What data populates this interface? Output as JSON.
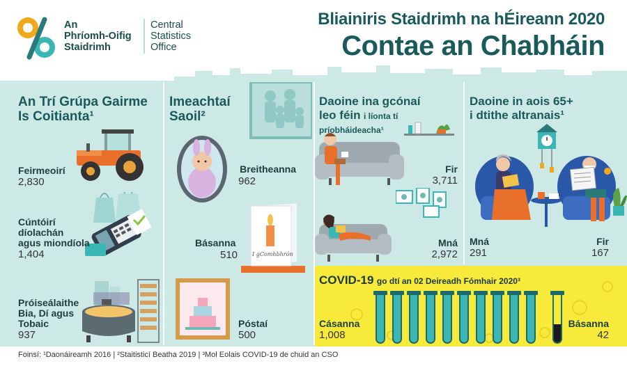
{
  "logo": {
    "irish_name_1": "An",
    "irish_name_2": "Phríomh-Oifig",
    "irish_name_3": "Staidrimh",
    "english_name_1": "Central",
    "english_name_2": "Statistics",
    "english_name_3": "Office"
  },
  "header": {
    "subtitle": "Bliainiris Staidrimh na hÉireann 2020",
    "title": "Contae an Chabháin"
  },
  "occupations": {
    "heading_1": "An Trí Grúpa Gairme",
    "heading_2": "Is Coitianta¹",
    "items": [
      {
        "label": "Feirmeoirí",
        "value": "2,830"
      },
      {
        "label_1": "Cúntóirí",
        "label_2": "díolachán",
        "label_3": "agus miondíola",
        "value": "1,404"
      },
      {
        "label_1": "Próiseálaithe",
        "label_2": "Bia, Dí agus",
        "label_3": "Tobaic",
        "value": "937"
      }
    ]
  },
  "life_events": {
    "heading_1": "Imeachtaí",
    "heading_2": "Saoil²",
    "births_label": "Breitheanna",
    "births_value": "962",
    "deaths_label": "Básanna",
    "deaths_value": "510",
    "marriages_label": "Póstaí",
    "marriages_value": "500",
    "card_text": "I gComhbhrón"
  },
  "living_alone": {
    "heading_1": "Daoine ina gcónaí",
    "heading_2": "leo féin",
    "heading_small_1": "i líonta tí",
    "heading_small_2": "príobháideacha¹",
    "men_label": "Fir",
    "men_value": "3,711",
    "women_label": "Mná",
    "women_value": "2,972"
  },
  "nursing_homes": {
    "heading_1": "Daoine in aois 65+",
    "heading_2": "i dtithe altranais¹",
    "women_label": "Mná",
    "women_value": "291",
    "men_label": "Fir",
    "men_value": "167"
  },
  "covid": {
    "heading_bold": "COVID-19",
    "heading_rest": "go dtí an 02 Deireadh Fómhair 2020³",
    "cases_label": "Cásanna",
    "cases_value": "1,008",
    "deaths_label": "Básanna",
    "deaths_value": "42"
  },
  "footer": {
    "sources": "Foinsí: ¹Daonáireamh 2016 | ²Staitisticí Beatha 2019 | ³Mol Eolais COVID-19 de chuid an CSO"
  },
  "colors": {
    "teal_panel": "#cde9e6",
    "heading_teal": "#1a5a5a",
    "covid_yellow": "#f7ea3b",
    "tube_teal": "#3ab7b4",
    "tractor_orange": "#e8702a"
  }
}
